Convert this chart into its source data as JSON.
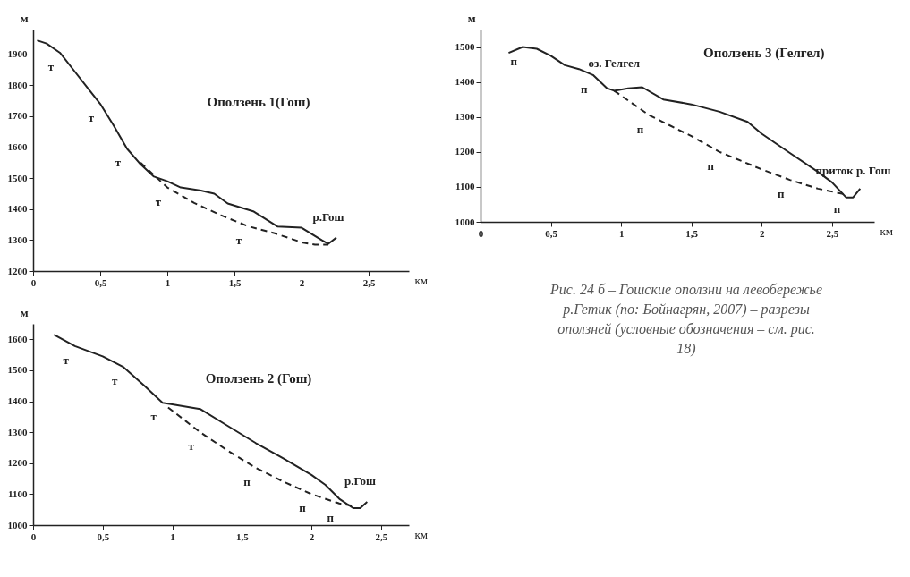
{
  "chart_data": [
    {
      "type": "line",
      "title": "Оползень 1(Гош)",
      "xlabel": "км",
      "ylabel": "м",
      "xlim": [
        0,
        2.8
      ],
      "ylim": [
        1200,
        1980
      ],
      "xticks": [
        0,
        {
          "value": 0.5,
          "label": "0,5"
        },
        1,
        {
          "value": 1.5,
          "label": "1,5"
        },
        2,
        {
          "value": 2.5,
          "label": "2,5"
        }
      ],
      "yticks": [
        1200,
        1300,
        1400,
        1500,
        1600,
        1700,
        1800,
        1900
      ],
      "series": [
        {
          "color": "#222222",
          "line_style": "solid",
          "x": [
            0.03,
            0.1,
            0.2,
            0.3,
            0.4,
            0.5,
            0.6,
            0.7,
            0.8,
            0.9,
            1.0,
            1.1,
            1.25,
            1.35,
            1.45,
            1.64,
            1.82,
            2.0,
            2.15,
            2.2,
            2.26
          ],
          "values": [
            1945,
            1935,
            1905,
            1850,
            1795,
            1740,
            1670,
            1595,
            1545,
            1505,
            1490,
            1470,
            1460,
            1450,
            1418,
            1393,
            1344,
            1340,
            1300,
            1288,
            1308
          ]
        },
        {
          "color": "#222222",
          "line_style": "dashed",
          "x": [
            0.8,
            1.0,
            1.2,
            1.4,
            1.6,
            1.8,
            2.0,
            2.1,
            2.2
          ],
          "values": [
            1550,
            1470,
            1420,
            1380,
            1345,
            1322,
            1293,
            1285,
            1285
          ]
        }
      ],
      "annotations": [
        {
          "text": "т",
          "x": 0.2,
          "y": 1905
        },
        {
          "text": "т",
          "x": 0.5,
          "y": 1740
        },
        {
          "text": "т",
          "x": 0.7,
          "y": 1595
        },
        {
          "text": "т",
          "x": 1.0,
          "y": 1470
        },
        {
          "text": "т",
          "x": 1.6,
          "y": 1345
        },
        {
          "text": "р.Гош",
          "x": 2.2,
          "y": 1288
        }
      ],
      "grid": false
    },
    {
      "type": "line",
      "title": "Оползень 2 (Гош)",
      "xlabel": "км",
      "ylabel": "м",
      "xlim": [
        0,
        2.7
      ],
      "ylim": [
        1000,
        1650
      ],
      "xticks": [
        0,
        {
          "value": 0.5,
          "label": "0,5"
        },
        1,
        {
          "value": 1.5,
          "label": "1,5"
        },
        2,
        {
          "value": 2.5,
          "label": "2,5"
        }
      ],
      "yticks": [
        1000,
        1100,
        1200,
        1300,
        1400,
        1500,
        1600
      ],
      "series": [
        {
          "color": "#222222",
          "line_style": "solid",
          "x": [
            0.15,
            0.3,
            0.5,
            0.65,
            0.8,
            0.93,
            1.0,
            1.2,
            1.4,
            1.6,
            1.8,
            2.0,
            2.1,
            2.2,
            2.3,
            2.35,
            2.4
          ],
          "values": [
            1615,
            1578,
            1545,
            1510,
            1450,
            1395,
            1390,
            1375,
            1320,
            1265,
            1215,
            1162,
            1130,
            1085,
            1055,
            1055,
            1075
          ]
        },
        {
          "color": "#222222",
          "line_style": "dashed",
          "x": [
            0.97,
            1.2,
            1.4,
            1.6,
            1.8,
            2.0,
            2.2,
            2.3
          ],
          "values": [
            1380,
            1300,
            1240,
            1185,
            1140,
            1100,
            1070,
            1062
          ]
        }
      ],
      "annotations": [
        {
          "text": "т",
          "x": 0.3,
          "y": 1578
        },
        {
          "text": "т",
          "x": 0.65,
          "y": 1510
        },
        {
          "text": "т",
          "x": 0.93,
          "y": 1395
        },
        {
          "text": "т",
          "x": 1.2,
          "y": 1300
        },
        {
          "text": "п",
          "x": 1.6,
          "y": 1185
        },
        {
          "text": "п",
          "x": 2.0,
          "y": 1100
        },
        {
          "text": "п",
          "x": 2.2,
          "y": 1070
        },
        {
          "text": "р.Гош",
          "x": 2.35,
          "y": 1055
        }
      ],
      "grid": false
    },
    {
      "type": "line",
      "title": "Оползень 3 (Гелгел)",
      "xlabel": "км",
      "ylabel": "м",
      "xlim": [
        0,
        2.8
      ],
      "ylim": [
        1000,
        1550
      ],
      "xticks": [
        0,
        {
          "value": 0.5,
          "label": "0,5"
        },
        1,
        {
          "value": 1.5,
          "label": "1,5"
        },
        2,
        {
          "value": 2.5,
          "label": "2,5"
        }
      ],
      "yticks": [
        1000,
        1100,
        1200,
        1300,
        1400,
        1500
      ],
      "series": [
        {
          "color": "#222222",
          "line_style": "solid",
          "x": [
            0.2,
            0.3,
            0.4,
            0.5,
            0.6,
            0.7,
            0.8,
            0.9,
            0.95,
            1.05,
            1.15,
            1.3,
            1.5,
            1.7,
            1.9,
            2.0,
            2.2,
            2.4,
            2.5,
            2.6,
            2.65,
            2.7
          ],
          "values": [
            1483,
            1500,
            1495,
            1475,
            1448,
            1437,
            1420,
            1382,
            1375,
            1382,
            1385,
            1350,
            1336,
            1315,
            1286,
            1252,
            1197,
            1143,
            1113,
            1070,
            1070,
            1095
          ]
        },
        {
          "color": "#222222",
          "line_style": "dashed",
          "x": [
            0.95,
            1.2,
            1.5,
            1.7,
            2.0,
            2.2,
            2.4,
            2.6
          ],
          "values": [
            1375,
            1305,
            1245,
            1200,
            1150,
            1120,
            1095,
            1078
          ]
        }
      ],
      "annotations": [
        {
          "text": "п",
          "x": 0.3,
          "y": 1500
        },
        {
          "text": "п",
          "x": 0.8,
          "y": 1420
        },
        {
          "text": "п",
          "x": 1.2,
          "y": 1305
        },
        {
          "text": "п",
          "x": 1.7,
          "y": 1200
        },
        {
          "text": "п",
          "x": 2.2,
          "y": 1120
        },
        {
          "text": "п",
          "x": 2.6,
          "y": 1078
        },
        {
          "text": "оз. Гелгел",
          "x": 0.95,
          "y": 1375
        },
        {
          "text": "приток р. Гош",
          "x": 2.65,
          "y": 1070
        },
        "Рис. 24 б – Гошские оползни на левобережье р.Гетик (по: Бойнагрян, 2007) – разрезы оползней (условные обозначения – см. рис. 18)"
      ],
      "grid": false
    }
  ]
}
